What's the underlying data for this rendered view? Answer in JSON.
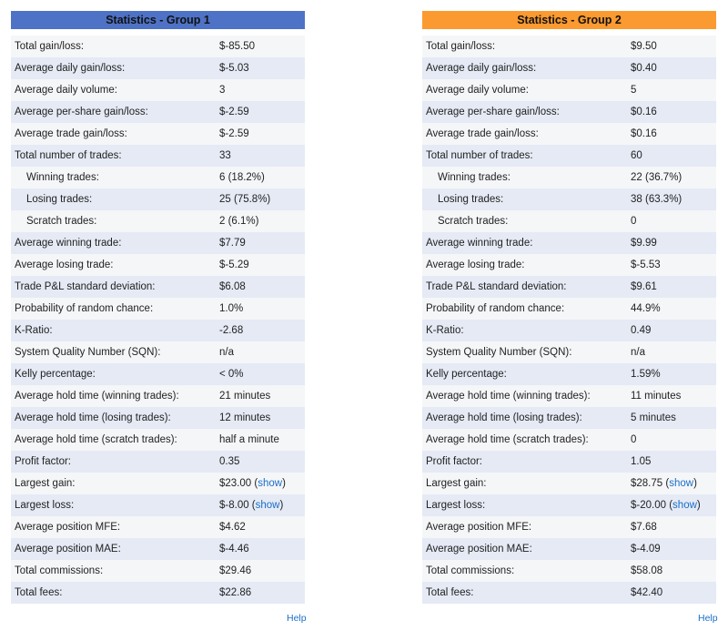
{
  "colors": {
    "group1_header": "#4e72c5",
    "group2_header": "#fb9a30",
    "row_odd": "#f5f6f8",
    "row_even": "#e5eaf5",
    "link": "#1a6fc7"
  },
  "groups": [
    {
      "title": "Statistics - Group 1",
      "help_label": "Help",
      "rows": [
        {
          "label": "Total gain/loss:",
          "value": "$-85.50"
        },
        {
          "label": "Average daily gain/loss:",
          "value": "$-5.03"
        },
        {
          "label": "Average daily volume:",
          "value": "3"
        },
        {
          "label": "Average per-share gain/loss:",
          "value": "$-2.59"
        },
        {
          "label": "Average trade gain/loss:",
          "value": "$-2.59"
        },
        {
          "label": "Total number of trades:",
          "value": "33"
        },
        {
          "label": "Winning trades:",
          "value": "6 (18.2%)",
          "indent": true
        },
        {
          "label": "Losing trades:",
          "value": "25 (75.8%)",
          "indent": true
        },
        {
          "label": "Scratch trades:",
          "value": "2 (6.1%)",
          "indent": true
        },
        {
          "label": "Average winning trade:",
          "value": "$7.79"
        },
        {
          "label": "Average losing trade:",
          "value": "$-5.29"
        },
        {
          "label": "Trade P&L standard deviation:",
          "value": "$6.08"
        },
        {
          "label": "Probability of random chance:",
          "value": "1.0%"
        },
        {
          "label": "K-Ratio:",
          "value": "-2.68"
        },
        {
          "label": "System Quality Number (SQN):",
          "value": "n/a"
        },
        {
          "label": "Kelly percentage:",
          "value": "< 0%"
        },
        {
          "label": "Average hold time (winning trades):",
          "value": "21 minutes"
        },
        {
          "label": "Average hold time (losing trades):",
          "value": "12 minutes"
        },
        {
          "label": "Average hold time (scratch trades):",
          "value": "half a minute"
        },
        {
          "label": "Profit factor:",
          "value": "0.35"
        },
        {
          "label": "Largest gain:",
          "value": "$23.00",
          "link": "show"
        },
        {
          "label": "Largest loss:",
          "value": "$-8.00",
          "link": "show"
        },
        {
          "label": "Average position MFE:",
          "value": "$4.62"
        },
        {
          "label": "Average position MAE:",
          "value": "$-4.46"
        },
        {
          "label": "Total commissions:",
          "value": "$29.46"
        },
        {
          "label": "Total fees:",
          "value": "$22.86"
        }
      ]
    },
    {
      "title": "Statistics - Group 2",
      "help_label": "Help",
      "rows": [
        {
          "label": "Total gain/loss:",
          "value": "$9.50"
        },
        {
          "label": "Average daily gain/loss:",
          "value": "$0.40"
        },
        {
          "label": "Average daily volume:",
          "value": "5"
        },
        {
          "label": "Average per-share gain/loss:",
          "value": "$0.16"
        },
        {
          "label": "Average trade gain/loss:",
          "value": "$0.16"
        },
        {
          "label": "Total number of trades:",
          "value": "60"
        },
        {
          "label": "Winning trades:",
          "value": "22 (36.7%)",
          "indent": true
        },
        {
          "label": "Losing trades:",
          "value": "38 (63.3%)",
          "indent": true
        },
        {
          "label": "Scratch trades:",
          "value": "0",
          "indent": true
        },
        {
          "label": "Average winning trade:",
          "value": "$9.99"
        },
        {
          "label": "Average losing trade:",
          "value": "$-5.53"
        },
        {
          "label": "Trade P&L standard deviation:",
          "value": "$9.61"
        },
        {
          "label": "Probability of random chance:",
          "value": "44.9%"
        },
        {
          "label": "K-Ratio:",
          "value": "0.49"
        },
        {
          "label": "System Quality Number (SQN):",
          "value": "n/a"
        },
        {
          "label": "Kelly percentage:",
          "value": "1.59%"
        },
        {
          "label": "Average hold time (winning trades):",
          "value": "11 minutes"
        },
        {
          "label": "Average hold time (losing trades):",
          "value": "5 minutes"
        },
        {
          "label": "Average hold time (scratch trades):",
          "value": "0"
        },
        {
          "label": "Profit factor:",
          "value": "1.05"
        },
        {
          "label": "Largest gain:",
          "value": "$28.75",
          "link": "show"
        },
        {
          "label": "Largest loss:",
          "value": "$-20.00",
          "link": "show"
        },
        {
          "label": "Average position MFE:",
          "value": "$7.68"
        },
        {
          "label": "Average position MAE:",
          "value": "$-4.09"
        },
        {
          "label": "Total commissions:",
          "value": "$58.08"
        },
        {
          "label": "Total fees:",
          "value": "$42.40"
        }
      ]
    }
  ]
}
